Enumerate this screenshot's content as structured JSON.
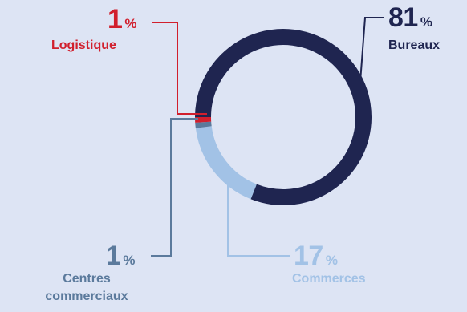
{
  "chart_data": {
    "type": "pie",
    "variant": "donut",
    "title": "",
    "slices": [
      {
        "label": "Bureaux",
        "value": 81,
        "unit": "%",
        "color": "#1f2550"
      },
      {
        "label": "Commerces",
        "value": 17,
        "unit": "%",
        "color": "#a2c2e6"
      },
      {
        "label": "Centres commerciaux",
        "value": 1,
        "unit": "%",
        "color": "#5b7a9c"
      },
      {
        "label": "Logistique",
        "value": 1,
        "unit": "%",
        "color": "#d11f2d"
      }
    ]
  },
  "labels": {
    "bureaux": {
      "value": "81",
      "unit": "%",
      "name": "Bureaux"
    },
    "logistique": {
      "value": "1",
      "unit": "%",
      "name": "Logistique"
    },
    "commerces": {
      "value": "17",
      "unit": "%",
      "name": "Commerces"
    },
    "centres": {
      "value": "1",
      "unit": "%",
      "name_line1": "Centres",
      "name_line2": "commerciaux"
    }
  },
  "background": "#dde4f4"
}
